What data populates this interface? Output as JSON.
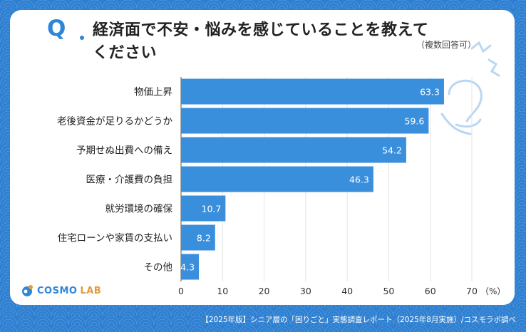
{
  "title": {
    "q": "Q",
    "line1": "経済面で不安・悩みを感じていることを教えて",
    "line2": "ください",
    "note": "（複数回答可）"
  },
  "logo": {
    "name": "COSMO",
    "suffix": "LAB"
  },
  "footer": "【2025年版】シニア層の「困りごと」実態調査レポート（2025年8月実施）/コスモラボ調べ",
  "chart_data": {
    "type": "bar",
    "orientation": "horizontal",
    "categories": [
      "物価上昇",
      "老後資金が足りるかどうか",
      "予期せぬ出費への備え",
      "医療・介護費の負担",
      "就労環境の確保",
      "住宅ローンや家賃の支払い",
      "その他"
    ],
    "values": [
      63.3,
      59.6,
      54.2,
      46.3,
      10.7,
      8.2,
      4.3
    ],
    "xlim": [
      0,
      70
    ],
    "xticks": [
      0,
      10,
      20,
      30,
      40,
      50,
      60,
      70
    ],
    "unit_label": "（%）",
    "bar_color": "#3a8fdd",
    "grid": true
  }
}
